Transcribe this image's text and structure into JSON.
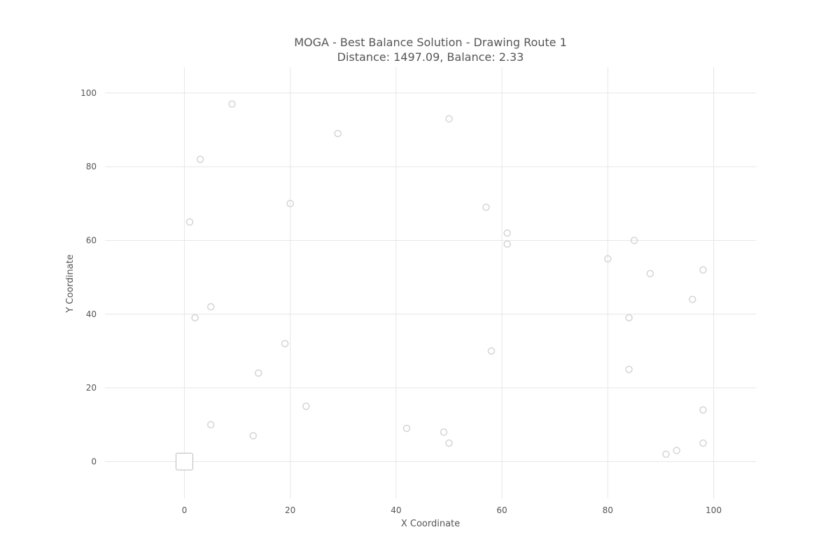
{
  "chart_data": {
    "type": "scatter",
    "title_line1": "MOGA - Best Balance Solution - Drawing Route 1",
    "title_line2": "Distance: 1497.09, Balance: 2.33",
    "xlabel": "X Coordinate",
    "ylabel": "Y Coordinate",
    "xlim": [
      -15,
      108
    ],
    "ylim": [
      -10,
      107
    ],
    "xticks": [
      0,
      20,
      40,
      60,
      80,
      100
    ],
    "yticks": [
      0,
      20,
      40,
      60,
      80,
      100
    ],
    "grid": true,
    "depot": {
      "x": 0,
      "y": 0
    },
    "points": [
      {
        "x": 9,
        "y": 97
      },
      {
        "x": 3,
        "y": 82
      },
      {
        "x": 1,
        "y": 65
      },
      {
        "x": 5,
        "y": 42
      },
      {
        "x": 2,
        "y": 39
      },
      {
        "x": 5,
        "y": 10
      },
      {
        "x": 13,
        "y": 7
      },
      {
        "x": 14,
        "y": 24
      },
      {
        "x": 19,
        "y": 32
      },
      {
        "x": 23,
        "y": 15
      },
      {
        "x": 20,
        "y": 70
      },
      {
        "x": 29,
        "y": 89
      },
      {
        "x": 42,
        "y": 9
      },
      {
        "x": 49,
        "y": 8
      },
      {
        "x": 50,
        "y": 5
      },
      {
        "x": 50,
        "y": 93
      },
      {
        "x": 57,
        "y": 69
      },
      {
        "x": 61,
        "y": 62
      },
      {
        "x": 61,
        "y": 59
      },
      {
        "x": 58,
        "y": 30
      },
      {
        "x": 80,
        "y": 55
      },
      {
        "x": 85,
        "y": 60
      },
      {
        "x": 88,
        "y": 51
      },
      {
        "x": 84,
        "y": 39
      },
      {
        "x": 84,
        "y": 25
      },
      {
        "x": 96,
        "y": 44
      },
      {
        "x": 98,
        "y": 52
      },
      {
        "x": 98,
        "y": 14
      },
      {
        "x": 98,
        "y": 5
      },
      {
        "x": 93,
        "y": 3
      },
      {
        "x": 91,
        "y": 2
      }
    ]
  }
}
